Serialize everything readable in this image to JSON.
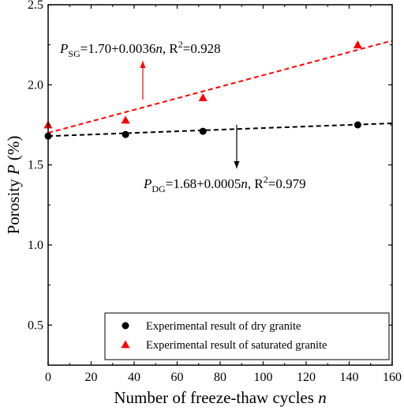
{
  "chart_data": {
    "type": "scatter",
    "xlabel": {
      "main": "Number of freeze-thaw cycles ",
      "var": "n"
    },
    "ylabel": {
      "main": "Porosity ",
      "var": "P",
      "unit": " (%)"
    },
    "xlim": [
      0,
      160
    ],
    "ylim": [
      0.25,
      2.5
    ],
    "xticks": [
      0,
      20,
      40,
      60,
      80,
      100,
      120,
      140,
      160
    ],
    "yticks": [
      0.5,
      1.0,
      1.5,
      2.0,
      2.5
    ],
    "ytick_labels": [
      "0.5",
      "1.0",
      "1.5",
      "2.0",
      "2.5"
    ],
    "grid": false,
    "legend_position": "bottom-right",
    "series": [
      {
        "name": "Experimental result of dry granite",
        "marker": "circle",
        "color": "#000000",
        "x": [
          0,
          36,
          72,
          144
        ],
        "y": [
          1.68,
          1.69,
          1.71,
          1.75
        ],
        "fit": {
          "intercept": 1.68,
          "slope": 0.0005,
          "line_style": "dashed",
          "color": "#000000"
        },
        "equation": {
          "symbol": "P",
          "subscript": "DG",
          "rhs": "=1.68+0.0005",
          "var": "n",
          "r2": ", R",
          "sup": "2",
          "r2_value": "=0.979"
        }
      },
      {
        "name": "Experimental result of saturated granite",
        "marker": "triangle",
        "color": "#ff0000",
        "x": [
          0,
          36,
          72,
          144
        ],
        "y": [
          1.75,
          1.78,
          1.92,
          2.25
        ],
        "fit": {
          "intercept": 1.7,
          "slope": 0.0036,
          "line_style": "dashed",
          "color": "#ff0000"
        },
        "equation": {
          "symbol": "P",
          "subscript": "SG",
          "rhs": "=1.70+0.0036",
          "var": "n",
          "r2": ", R",
          "sup": "2",
          "r2_value": "=0.928"
        }
      }
    ]
  }
}
